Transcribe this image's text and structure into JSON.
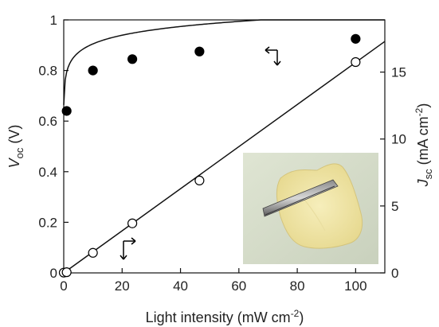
{
  "chart_data": {
    "type": "scatter",
    "xlabel_main": "Light intensity (mW cm",
    "xlabel_sup": "-2",
    "xlabel_end": ")",
    "ylabel_left": {
      "symbol": "V",
      "sub": "oc",
      "unit": " (V)"
    },
    "ylabel_right": {
      "symbol": "J",
      "sub": "sc",
      "unit_main": " (mA cm",
      "unit_sup": "-2",
      "unit_end": ")"
    },
    "xlim": [
      0,
      110
    ],
    "ylim_left": [
      0,
      1
    ],
    "ylim_right": [
      0,
      18.9
    ],
    "x_ticks": [
      "0",
      "20",
      "40",
      "60",
      "80",
      "100"
    ],
    "y_left_ticks": [
      "0",
      "0.2",
      "0.4",
      "0.6",
      "0.8",
      "1"
    ],
    "y_right_ticks": [
      "0",
      "5",
      "10",
      "15"
    ],
    "series": [
      {
        "axis": "left",
        "marker": "filled-circle",
        "x": [
          1,
          10,
          23.5,
          46.5,
          100
        ],
        "y": [
          0.64,
          0.8,
          0.845,
          0.875,
          0.925
        ]
      },
      {
        "axis": "right",
        "marker": "open-circle",
        "x": [
          0,
          1,
          10,
          23.5,
          46.5,
          100
        ],
        "y": [
          0.02,
          0.05,
          1.5,
          3.7,
          6.9,
          15.75
        ]
      }
    ],
    "fit_left": {
      "a": 0.1147,
      "b": 0.08,
      "c": 0.6
    },
    "fit_right": {
      "slope": 0.1572,
      "intercept": 0
    },
    "legend": "arrows indicate which axis each series uses",
    "inset_photo": "photo of a translucent film held by tweezers",
    "colors": {
      "axis": "#111111",
      "marker": "#000000",
      "open_marker_fill": "#ffffff"
    }
  }
}
